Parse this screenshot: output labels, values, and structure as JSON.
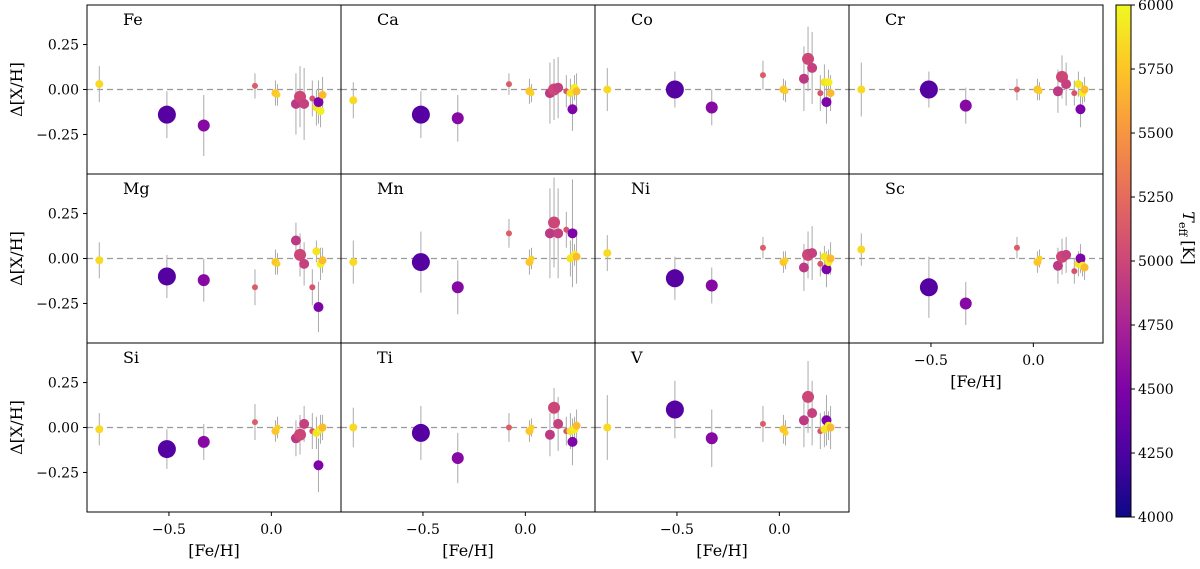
{
  "chart_data": {
    "type": "scatter",
    "xlabel": "[Fe/H]",
    "ylabel": "Δ[X/H]",
    "xlim": [
      -0.9,
      0.34
    ],
    "ylim": [
      -0.47,
      0.47
    ],
    "x_ticks": [
      -0.5,
      0.0
    ],
    "x_tick_labels": [
      "−0.5",
      "0.0"
    ],
    "y_ticks": [
      0.25,
      0.0,
      -0.25
    ],
    "y_tick_labels": [
      "0.25",
      "0.00",
      "−0.25"
    ],
    "colorbar": {
      "label": "T_eff [K]",
      "label_main": "T",
      "label_sub": "eff",
      "label_unit": "[K]",
      "min": 4000,
      "max": 6000,
      "ticks": [
        4000,
        4250,
        4500,
        4750,
        5000,
        5250,
        5500,
        5750,
        6000
      ],
      "tick_labels": [
        "4000",
        "4250",
        "4500",
        "4750",
        "5000",
        "5250",
        "5500",
        "5750",
        "6000"
      ]
    },
    "stars": [
      {
        "feh": -0.84,
        "teff": 5850,
        "size": 4
      },
      {
        "feh": -0.51,
        "teff": 4300,
        "size": 9
      },
      {
        "feh": -0.33,
        "teff": 4550,
        "size": 6
      },
      {
        "feh": -0.08,
        "teff": 5150,
        "size": 3
      },
      {
        "feh": 0.02,
        "teff": 5750,
        "size": 4
      },
      {
        "feh": 0.03,
        "teff": 5800,
        "size": 3
      },
      {
        "feh": 0.12,
        "teff": 4900,
        "size": 5
      },
      {
        "feh": 0.14,
        "teff": 5000,
        "size": 6
      },
      {
        "feh": 0.16,
        "teff": 4950,
        "size": 5
      },
      {
        "feh": 0.2,
        "teff": 5100,
        "size": 3
      },
      {
        "feh": 0.22,
        "teff": 5900,
        "size": 4
      },
      {
        "feh": 0.23,
        "teff": 4500,
        "size": 5
      },
      {
        "feh": 0.24,
        "teff": 5950,
        "size": 4
      },
      {
        "feh": 0.25,
        "teff": 5700,
        "size": 4
      }
    ],
    "panels": [
      {
        "element": "Fe",
        "dx": [
          0.03,
          -0.14,
          -0.2,
          0.02,
          -0.02,
          -0.03,
          -0.08,
          -0.04,
          -0.08,
          -0.05,
          -0.1,
          -0.07,
          -0.12,
          -0.03
        ],
        "err": [
          0.1,
          0.13,
          0.17,
          0.07,
          0.07,
          0.06,
          0.17,
          0.17,
          0.2,
          0.1,
          0.1,
          0.12,
          0.09,
          0.1
        ]
      },
      {
        "element": "Ca",
        "dx": [
          -0.06,
          -0.14,
          -0.16,
          0.03,
          -0.01,
          -0.02,
          -0.02,
          0.0,
          0.01,
          -0.01,
          -0.02,
          -0.11,
          0.01,
          -0.01
        ],
        "err": [
          0.1,
          0.13,
          0.13,
          0.06,
          0.07,
          0.05,
          0.17,
          0.17,
          0.17,
          0.09,
          0.08,
          0.12,
          0.07,
          0.1
        ]
      },
      {
        "element": "Co",
        "dx": [
          0.0,
          0.0,
          -0.1,
          0.08,
          0.0,
          -0.01,
          0.06,
          0.17,
          0.12,
          -0.02,
          0.04,
          -0.07,
          0.04,
          -0.02
        ],
        "err": [
          0.12,
          0.1,
          0.1,
          0.08,
          0.06,
          0.06,
          0.18,
          0.18,
          0.2,
          0.1,
          0.1,
          0.12,
          0.07,
          0.1
        ]
      },
      {
        "element": "Cr",
        "dx": [
          0.0,
          0.0,
          -0.09,
          0.0,
          0.0,
          -0.01,
          -0.01,
          0.07,
          0.03,
          -0.02,
          0.03,
          -0.11,
          -0.02,
          0.0
        ],
        "err": [
          0.15,
          0.1,
          0.1,
          0.06,
          0.06,
          0.05,
          0.12,
          0.12,
          0.12,
          0.07,
          0.07,
          0.1,
          0.06,
          0.07
        ]
      },
      {
        "element": "Mg",
        "dx": [
          -0.01,
          -0.1,
          -0.12,
          -0.16,
          -0.02,
          -0.03,
          0.1,
          0.02,
          -0.03,
          -0.16,
          0.04,
          -0.27,
          -0.03,
          -0.01
        ],
        "err": [
          0.1,
          0.12,
          0.12,
          0.1,
          0.07,
          0.06,
          0.1,
          0.12,
          0.12,
          0.1,
          0.06,
          0.14,
          0.09,
          0.07
        ]
      },
      {
        "element": "Mn",
        "dx": [
          -0.02,
          -0.02,
          -0.16,
          0.14,
          -0.02,
          0.0,
          0.14,
          0.2,
          0.14,
          0.16,
          0.0,
          0.14,
          0.02,
          0.01
        ],
        "err": [
          0.12,
          0.17,
          0.15,
          0.08,
          0.07,
          0.06,
          0.25,
          0.25,
          0.25,
          0.1,
          0.1,
          0.3,
          0.06,
          0.15
        ]
      },
      {
        "element": "Ni",
        "dx": [
          0.03,
          -0.11,
          -0.15,
          0.06,
          -0.02,
          -0.01,
          -0.05,
          0.02,
          0.03,
          -0.03,
          0.01,
          -0.06,
          -0.02,
          0.0
        ],
        "err": [
          0.1,
          0.12,
          0.1,
          0.06,
          0.06,
          0.05,
          0.13,
          0.13,
          0.15,
          0.07,
          0.06,
          0.1,
          0.07,
          0.09
        ]
      },
      {
        "element": "Sc",
        "dx": [
          0.05,
          -0.16,
          -0.25,
          0.06,
          -0.02,
          0.0,
          -0.04,
          0.01,
          0.02,
          -0.07,
          -0.03,
          0.0,
          -0.04,
          -0.05
        ],
        "err": [
          0.09,
          0.17,
          0.12,
          0.06,
          0.06,
          0.05,
          0.1,
          0.1,
          0.1,
          0.07,
          0.07,
          0.08,
          0.06,
          0.07
        ]
      },
      {
        "element": "Si",
        "dx": [
          -0.01,
          -0.12,
          -0.08,
          0.03,
          -0.02,
          0.0,
          -0.06,
          -0.04,
          0.02,
          -0.02,
          -0.03,
          -0.21,
          -0.01,
          0.0
        ],
        "err": [
          0.09,
          0.11,
          0.1,
          0.1,
          0.06,
          0.06,
          0.1,
          0.11,
          0.1,
          0.1,
          0.09,
          0.15,
          0.08,
          0.07
        ]
      },
      {
        "element": "Ti",
        "dx": [
          0.0,
          -0.03,
          -0.17,
          0.0,
          -0.02,
          0.0,
          -0.04,
          0.11,
          0.02,
          -0.02,
          -0.02,
          -0.08,
          -0.01,
          0.01
        ],
        "err": [
          0.11,
          0.15,
          0.14,
          0.08,
          0.06,
          0.05,
          0.12,
          0.11,
          0.15,
          0.08,
          0.1,
          0.13,
          0.07,
          0.09
        ]
      },
      {
        "element": "V",
        "dx": [
          0.0,
          0.1,
          -0.06,
          0.02,
          -0.01,
          -0.03,
          0.04,
          0.17,
          0.08,
          -0.02,
          -0.01,
          0.04,
          0.01,
          0.0
        ],
        "err": [
          0.18,
          0.16,
          0.16,
          0.1,
          0.08,
          0.07,
          0.15,
          0.2,
          0.18,
          0.1,
          0.1,
          0.14,
          0.08,
          0.12
        ]
      }
    ]
  }
}
